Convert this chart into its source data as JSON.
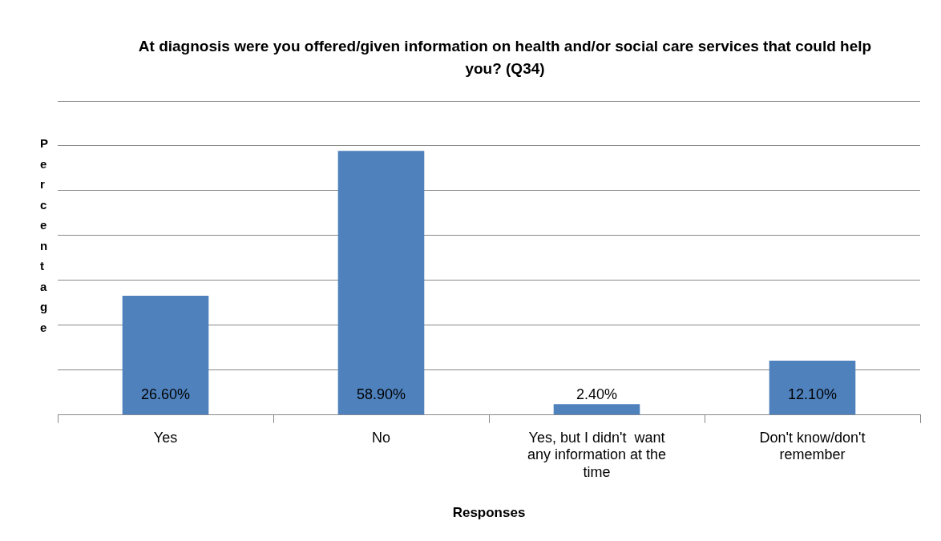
{
  "chart_data": {
    "type": "bar",
    "title": "At diagnosis were you offered/given information on health and/or social care services that could help you? (Q34)",
    "xlabel": "Responses",
    "ylabel": "Percentage",
    "categories": [
      "Yes",
      "No",
      "Yes, but I didn't  want any information at the time",
      "Don't know/don't remember"
    ],
    "values": [
      26.6,
      58.9,
      2.4,
      12.1
    ],
    "value_labels": [
      "26.60%",
      "58.90%",
      "2.40%",
      "12.10%"
    ],
    "color": "#4f81bd",
    "ylim": [
      0,
      70
    ],
    "yticks": [
      {
        "value": 0,
        "label": null
      },
      {
        "value": 10,
        "label": null
      },
      {
        "value": 20,
        "label": null
      },
      {
        "value": 30,
        "label": null
      },
      {
        "value": 40,
        "label": null
      },
      {
        "value": 50,
        "label": null
      },
      {
        "value": 60,
        "label": null
      },
      {
        "value": 70,
        "label": null
      }
    ],
    "tick_labels": "x",
    "grid": "y",
    "legend": false
  }
}
